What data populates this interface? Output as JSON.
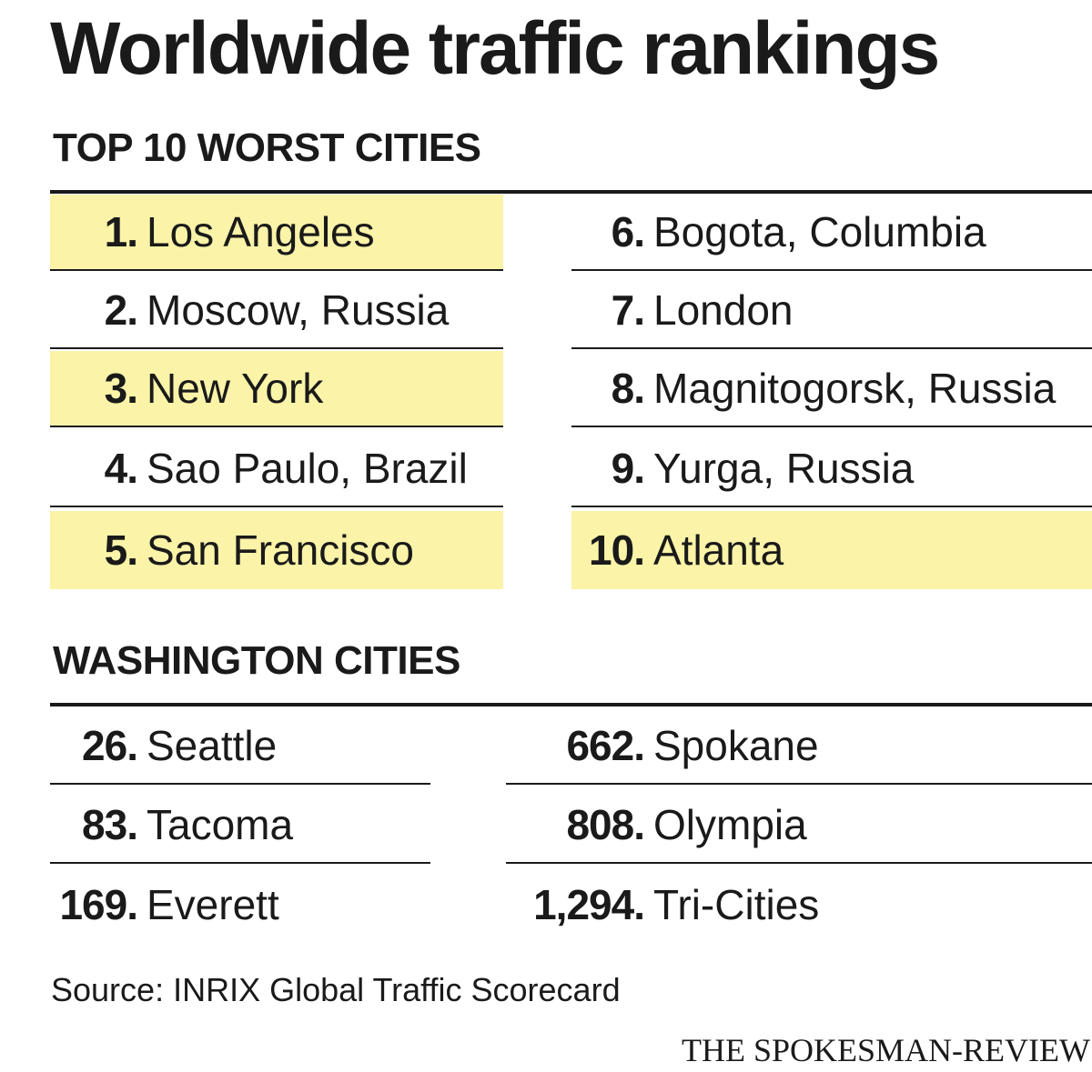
{
  "title": "Worldwide traffic rankings",
  "top10": {
    "heading": "TOP 10 WORST CITIES",
    "left": [
      {
        "rank": "1.",
        "city": "Los Angeles"
      },
      {
        "rank": "2.",
        "city": "Moscow, Russia"
      },
      {
        "rank": "3.",
        "city": "New York"
      },
      {
        "rank": "4.",
        "city": "Sao Paulo, Brazil"
      },
      {
        "rank": "5.",
        "city": "San Francisco"
      }
    ],
    "right": [
      {
        "rank": "6.",
        "city": "Bogota, Columbia"
      },
      {
        "rank": "7.",
        "city": "London"
      },
      {
        "rank": "8.",
        "city": "Magnitogorsk, Russia"
      },
      {
        "rank": "9.",
        "city": "Yurga, Russia"
      },
      {
        "rank": "10.",
        "city": "Atlanta"
      }
    ]
  },
  "washington": {
    "heading": "WASHINGTON CITIES",
    "left": [
      {
        "rank": "26.",
        "city": "Seattle"
      },
      {
        "rank": "83.",
        "city": "Tacoma"
      },
      {
        "rank": "169.",
        "city": "Everett"
      }
    ],
    "right": [
      {
        "rank": "662.",
        "city": "Spokane"
      },
      {
        "rank": "808.",
        "city": "Olympia"
      },
      {
        "rank": "1,294.",
        "city": "Tri-Cities"
      }
    ]
  },
  "source": "Source:  INRIX Global Traffic Scorecard",
  "credit": "THE SPOKESMAN-REVIEW",
  "colors": {
    "highlight": "#fbf3a8",
    "text": "#1a1a1a"
  }
}
